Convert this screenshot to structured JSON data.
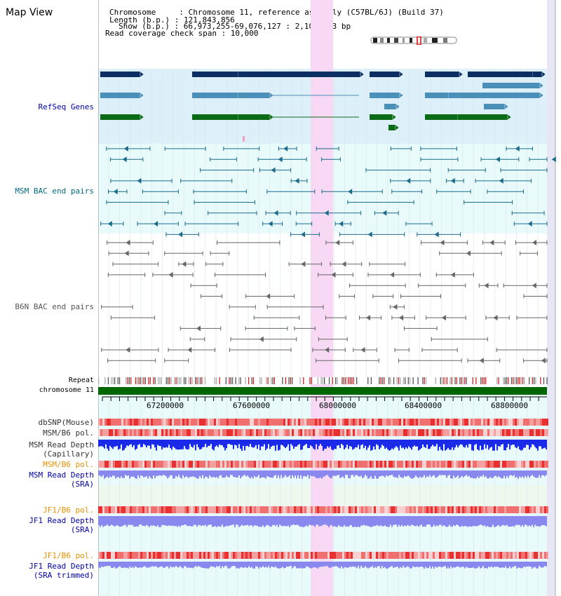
{
  "page": {
    "title": "Map View"
  },
  "header": {
    "chromosome_line": "Chromosome     : Chromosome 11, reference assembly (C57BL/6J) (Build 37)",
    "length_line": "Length (b.p.) : 121,843,856",
    "show_line": "Show (b.p.) : 66,973,255-69,076,127 : 2,102,873 bp",
    "span_line": "Read coverage check span : 10,000"
  },
  "tracks": {
    "refseq": "RefSeq Genes",
    "msm_bac": "MSM BAC end pairs",
    "b6n_bac": "B6N BAC end pairs",
    "repeat": "Repeat",
    "chromosome": "chromosome 11",
    "dbsnp": "dbSNP(Mouse)",
    "msm_b6_pol_1": "MSM/B6 pol.",
    "msm_read_depth_cap_1": "MSM Read Depth",
    "msm_read_depth_cap_2": "(Capillary)",
    "msm_b6_pol_2": "MSM/B6 pol.",
    "msm_read_depth_sra_1": "MSM Read Depth",
    "msm_read_depth_sra_2": "(SRA)",
    "jf1_b6_pol_1": "JF1/B6 pol.",
    "jf1_read_depth_sra_1": "JF1 Read Depth",
    "jf1_read_depth_sra_2": "(SRA)",
    "jf1_b6_pol_2": "JF1/B6 pol.",
    "jf1_read_depth_trim_1": "JF1 Read Depth",
    "jf1_read_depth_trim_2": "(SRA trimmed)"
  },
  "axis": {
    "ticks": [
      "67200000",
      "67600000",
      "68000000",
      "68400000",
      "68800000"
    ]
  },
  "colors": {
    "refseq_bg": "#ddf0fa",
    "bac_bg": "#e8fafa",
    "highlight": "#f8d8f4",
    "gene_dark": "#0b2f63",
    "gene_mid": "#4a8fb8",
    "gene_green": "#0a6b16",
    "msm_bac": "#1a6a8a",
    "b6n_bac": "#666666",
    "chrom_green": "#006600",
    "depth_blue": "#1a2ae8",
    "depth_lav": "#8888ee",
    "label_blue": "#0000aa",
    "label_orange": "#e89000",
    "label_teal": "#006a80"
  }
}
